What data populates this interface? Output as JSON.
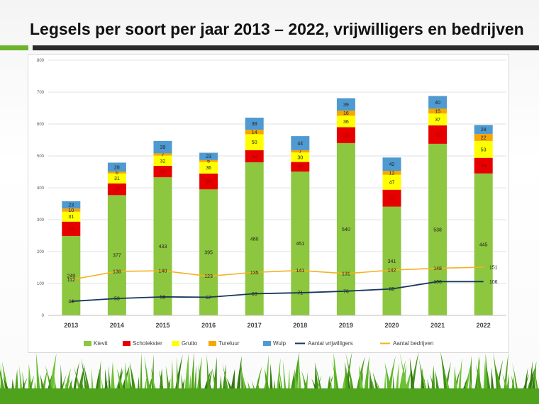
{
  "slide": {
    "title": "Legsels per soort per jaar 2013 – 2022, vrijwilligers en bedrijven"
  },
  "colors": {
    "kievit": "#8dc63f",
    "scholekster": "#e60000",
    "grutto": "#ffff00",
    "tureluur": "#f5a800",
    "wulp": "#4f9ad0",
    "vrijwilligers": "#17375e",
    "bedrijven": "#f5b11e",
    "grass": "#4ea21c",
    "accent": "#6cb52d"
  },
  "chart_data": {
    "type": "bar",
    "stacked": true,
    "categories": [
      "2013",
      "2014",
      "2015",
      "2016",
      "2017",
      "2018",
      "2019",
      "2020",
      "2021",
      "2022"
    ],
    "ylim": [
      0,
      800
    ],
    "yticks": [
      0,
      100,
      200,
      300,
      400,
      500,
      600,
      700,
      800
    ],
    "grid": true,
    "legend_position": "bottom",
    "series": [
      {
        "name": "Kievit",
        "color_key": "kievit",
        "values": [
          249,
          377,
          433,
          395,
          480,
          451,
          540,
          341,
          538,
          445
        ]
      },
      {
        "name": "Scholekster",
        "color_key": "scholekster",
        "values": [
          45,
          37,
          36,
          50,
          38,
          30,
          50,
          53,
          58,
          49
        ]
      },
      {
        "name": "Grutto",
        "color_key": "grutto",
        "values": [
          31,
          31,
          32,
          36,
          50,
          30,
          36,
          47,
          37,
          53
        ]
      },
      {
        "name": "Tureluur",
        "color_key": "tureluur",
        "values": [
          10,
          6,
          7,
          6,
          14,
          7,
          16,
          12,
          15,
          22
        ]
      },
      {
        "name": "Wulp",
        "color_key": "wulp",
        "values": [
          23,
          28,
          39,
          23,
          38,
          44,
          39,
          42,
          40,
          28
        ]
      }
    ],
    "lines": [
      {
        "name": "Aantal vrijwilligers",
        "color_key": "vrijwilligers",
        "values": [
          44,
          53,
          58,
          57,
          68,
          71,
          76,
          83,
          106,
          106
        ]
      },
      {
        "name": "Aantal bedrijven",
        "color_key": "bedrijven",
        "values": [
          112,
          138,
          140,
          123,
          135,
          141,
          131,
          142,
          148,
          151
        ]
      }
    ]
  }
}
